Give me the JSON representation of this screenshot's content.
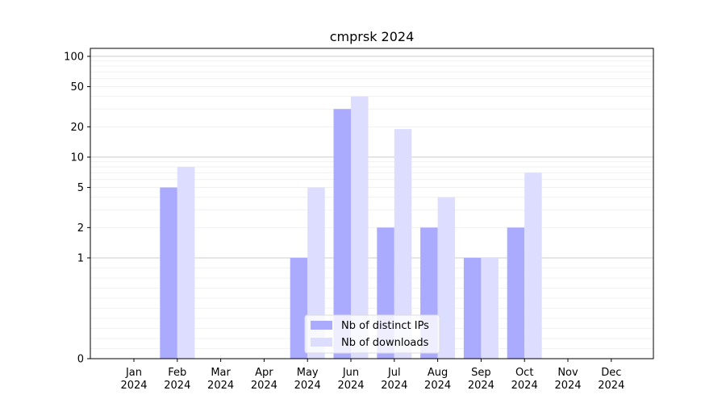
{
  "chart_data": {
    "type": "bar",
    "title": "cmprsk 2024",
    "xlabel": "",
    "ylabel": "",
    "y_scale": "symlog",
    "ylim": [
      0,
      120
    ],
    "y_ticks": [
      0,
      1,
      2,
      5,
      10,
      20,
      50,
      100
    ],
    "y_tick_labels": [
      "0",
      "1",
      "2",
      "5",
      "10",
      "20",
      "50",
      "100"
    ],
    "grid": "y major and minor",
    "legend_position": "bottom-center",
    "categories": [
      [
        "Jan",
        "2024"
      ],
      [
        "Feb",
        "2024"
      ],
      [
        "Mar",
        "2024"
      ],
      [
        "Apr",
        "2024"
      ],
      [
        "May",
        "2024"
      ],
      [
        "Jun",
        "2024"
      ],
      [
        "Jul",
        "2024"
      ],
      [
        "Aug",
        "2024"
      ],
      [
        "Sep",
        "2024"
      ],
      [
        "Oct",
        "2024"
      ],
      [
        "Nov",
        "2024"
      ],
      [
        "Dec",
        "2024"
      ]
    ],
    "series": [
      {
        "name": "Nb of distinct IPs",
        "color": "#aaaaff",
        "values": [
          0,
          5,
          0,
          0,
          1,
          30,
          2,
          2,
          1,
          2,
          0,
          0
        ]
      },
      {
        "name": "Nb of downloads",
        "color": "#ddddff",
        "values": [
          0,
          8,
          0,
          0,
          5,
          40,
          19,
          4,
          1,
          7,
          0,
          0
        ]
      }
    ]
  }
}
